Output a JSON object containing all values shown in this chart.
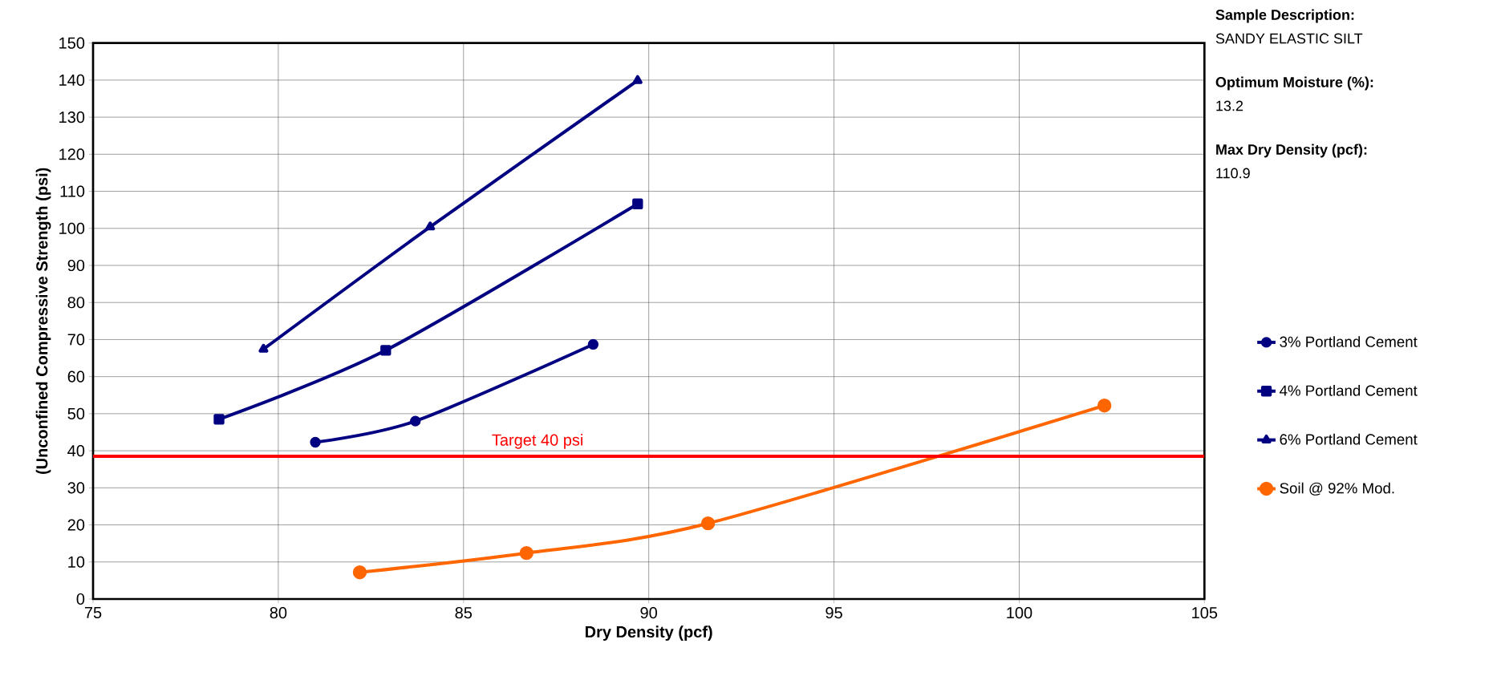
{
  "chart_data": {
    "type": "line",
    "xlabel": "Dry Density (pcf)",
    "ylabel": "(Unconfined Compressive Strength (psi)",
    "xlim": [
      75,
      105
    ],
    "xticks": [
      75,
      80,
      85,
      90,
      95,
      100,
      105
    ],
    "ylim": [
      0,
      150
    ],
    "yticks": [
      0,
      10,
      20,
      30,
      40,
      50,
      60,
      70,
      80,
      90,
      100,
      110,
      120,
      130,
      140,
      150
    ],
    "grid": true,
    "legend": "right",
    "series": [
      {
        "name": "3% Portland Cement",
        "color": "#000080",
        "marker": "circle",
        "x": [
          81.0,
          83.7,
          88.5
        ],
        "values": [
          42.3,
          48.0,
          68.7
        ]
      },
      {
        "name": "4% Portland Cement",
        "color": "#000080",
        "marker": "square",
        "x": [
          78.4,
          82.9,
          89.7
        ],
        "values": [
          48.5,
          67.1,
          106.6
        ]
      },
      {
        "name": "6% Portland Cement",
        "color": "#000080",
        "marker": "triangle",
        "x": [
          79.6,
          84.1,
          89.7
        ],
        "values": [
          67.4,
          100.4,
          139.9
        ]
      },
      {
        "name": "Soil @ 92% Mod.",
        "color": "#ff6600",
        "marker": "circle",
        "x": [
          82.2,
          86.7,
          91.6,
          102.3
        ],
        "values": [
          7.2,
          12.4,
          20.4,
          52.2
        ]
      }
    ],
    "ref_lines": [
      {
        "axis": "y",
        "value": 38.5,
        "label": "Target 40 psi",
        "color": "#ff0000"
      }
    ],
    "annotations": [
      "Sample Description:",
      "SANDY ELASTIC SILT",
      "Optimum Moisture (%):",
      "13.2",
      "Max Dry Density (pcf):",
      "110.9"
    ]
  }
}
